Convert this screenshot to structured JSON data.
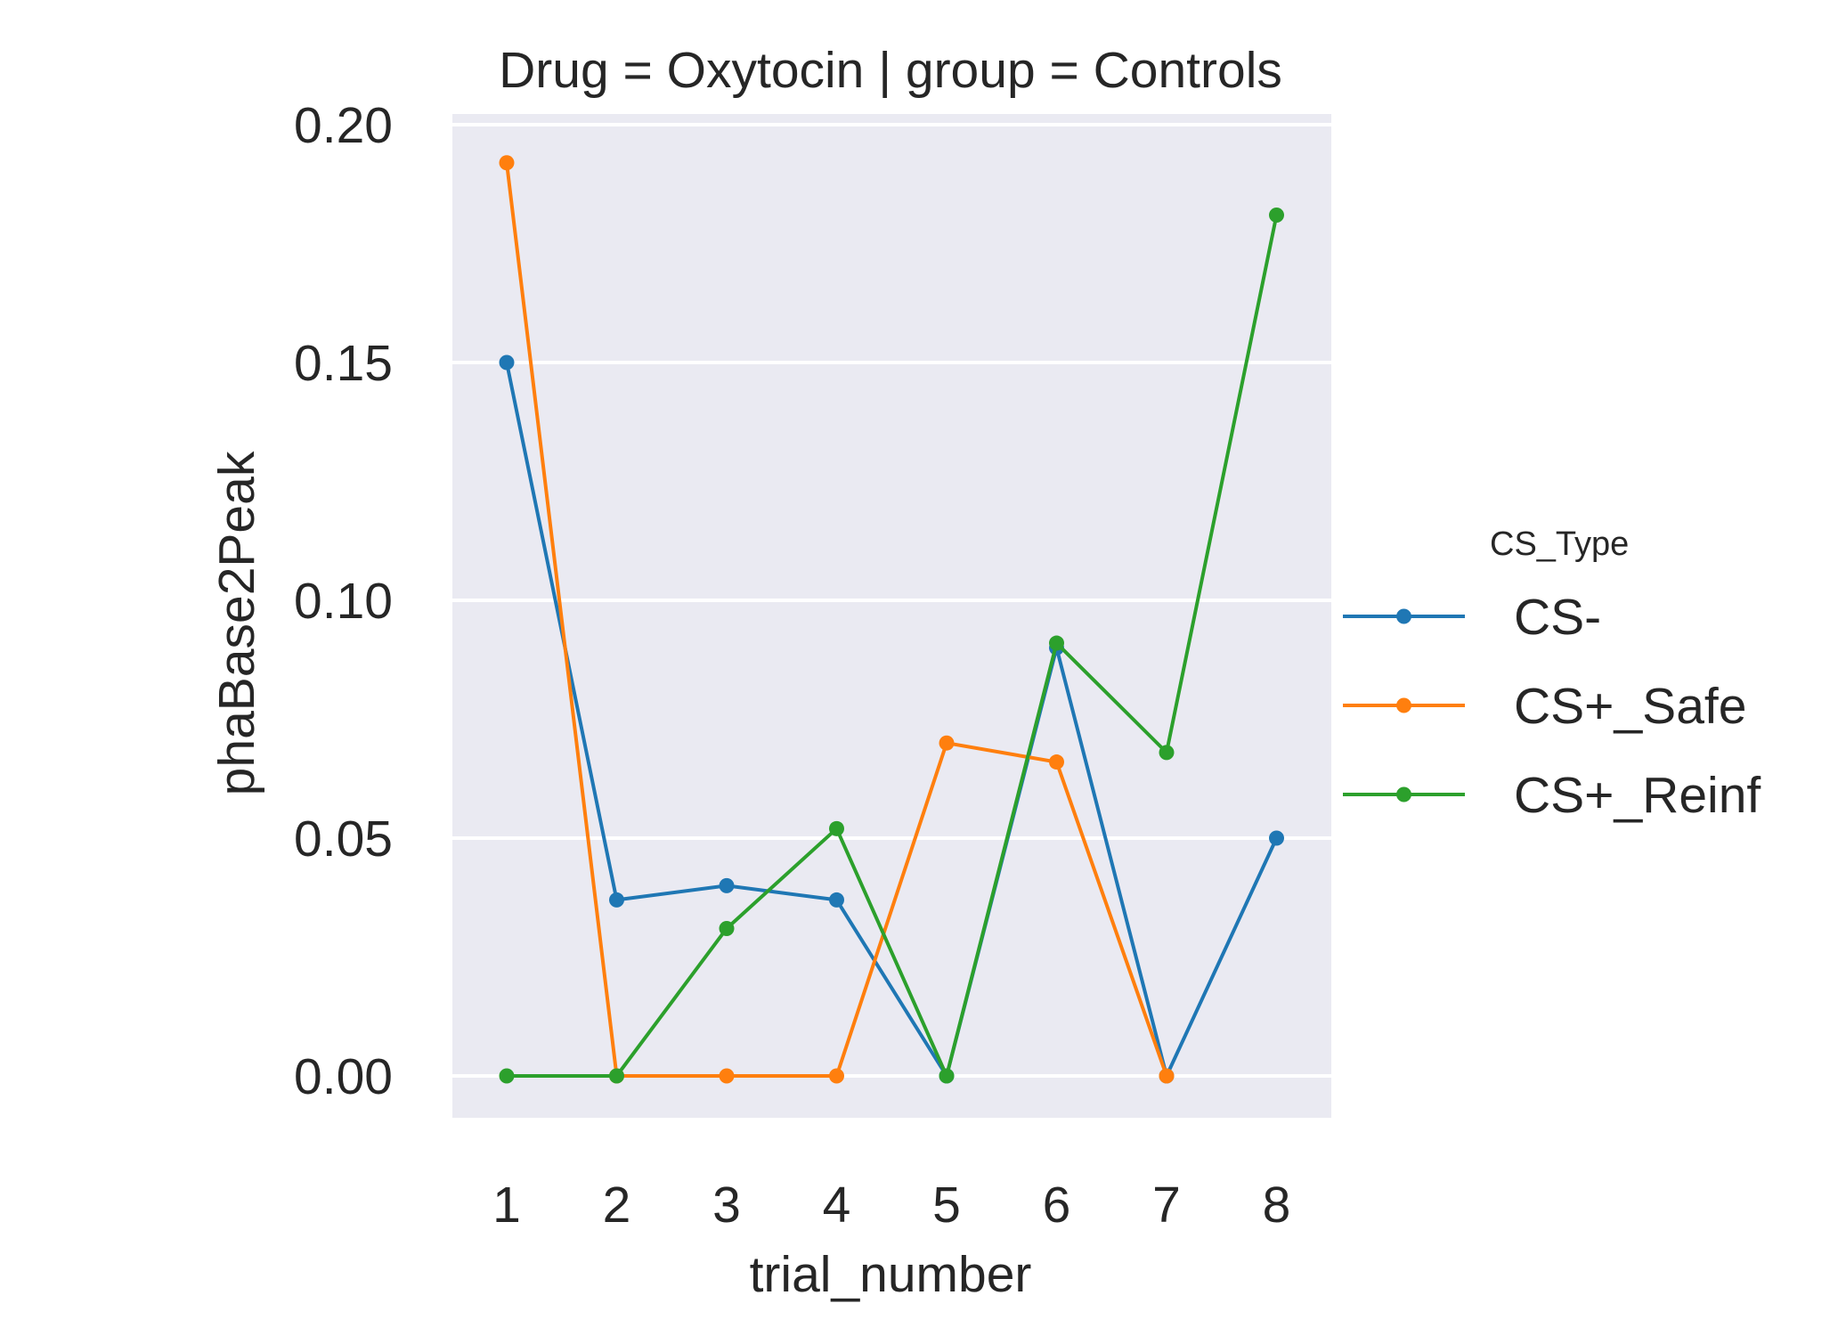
{
  "chart_data": {
    "type": "line",
    "title": "Drug = Oxytocin | group = Controls",
    "xlabel": "trial_number",
    "ylabel": "phaBase2Peak",
    "categories": [
      "1",
      "2",
      "3",
      "4",
      "5",
      "6",
      "7",
      "8"
    ],
    "ylim": [
      -0.009,
      0.201
    ],
    "yticks": [
      "0.00",
      "0.05",
      "0.10",
      "0.15",
      "0.20"
    ],
    "ytick_values": [
      0.0,
      0.05,
      0.1,
      0.15,
      0.2
    ],
    "grid": true,
    "legend": {
      "title": "CS_Type",
      "position": "right"
    },
    "series": [
      {
        "name": "CS-",
        "color": "#1f77b4",
        "values": [
          0.15,
          0.037,
          0.04,
          0.037,
          0.0,
          0.09,
          0.0,
          0.05
        ]
      },
      {
        "name": "CS+_Safe",
        "color": "#ff7f0e",
        "values": [
          0.192,
          0.0,
          0.0,
          0.0,
          0.07,
          0.066,
          0.0,
          null
        ]
      },
      {
        "name": "CS+_Reinf",
        "color": "#2ca02c",
        "values": [
          0.0,
          0.0,
          0.031,
          0.052,
          0.0,
          0.091,
          0.068,
          0.181
        ]
      }
    ],
    "plot_background": "#eaeaf2",
    "grid_color": "#ffffff"
  }
}
